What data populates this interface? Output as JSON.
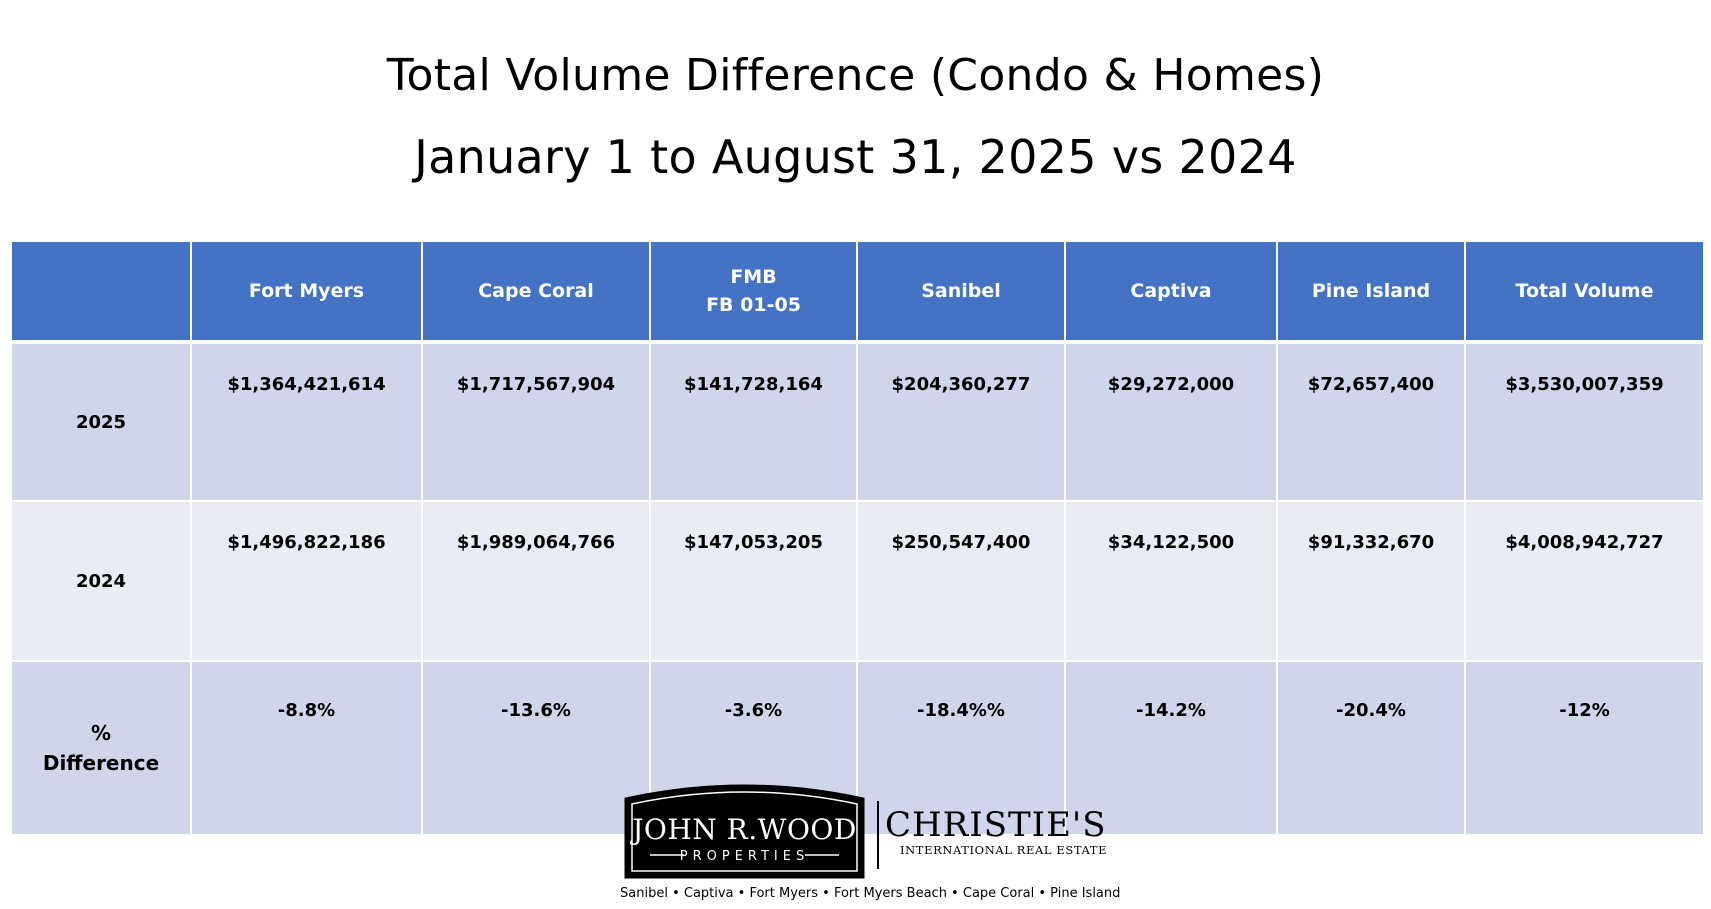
{
  "title": "Total Volume Difference (Condo & Homes)",
  "subtitle": "January 1 to August 31, 2025 vs 2024",
  "table": {
    "columns": [
      {
        "label": ""
      },
      {
        "label": "Fort Myers"
      },
      {
        "label": "Cape Coral"
      },
      {
        "label": "FMB",
        "sublabel": "FB 01-05"
      },
      {
        "label": "Sanibel"
      },
      {
        "label": "Captiva"
      },
      {
        "label": "Pine Island"
      },
      {
        "label": "Total Volume"
      }
    ],
    "rows": [
      {
        "label": "2025",
        "cells": [
          "$1,364,421,614",
          "$1,717,567,904",
          "$141,728,164",
          "$204,360,277",
          "$29,272,000",
          "$72,657,400",
          "$3,530,007,359"
        ]
      },
      {
        "label": "2024",
        "cells": [
          "$1,496,822,186",
          "$1,989,064,766",
          "$147,053,205",
          "$250,547,400",
          "$34,122,500",
          "$91,332,670",
          "$4,008,942,727"
        ]
      },
      {
        "label": "%",
        "label2": "Difference",
        "cells": [
          "-8.8%",
          "-13.6%",
          "-3.6%",
          "-18.4%%",
          "-14.2%",
          "-20.4%",
          "-12%"
        ]
      }
    ]
  },
  "branding": {
    "jrw_name": "JOHN R.WOOD",
    "jrw_sub": "PROPERTIES",
    "christies_name": "CHRISTIE'S",
    "christies_sub": "INTERNATIONAL REAL ESTATE",
    "locations": "Sanibel • Captiva • Fort Myers • Fort Myers Beach • Cape Coral • Pine Island"
  },
  "colors": {
    "header": "#4472c4",
    "band_dark": "#cfd5ea",
    "band_light": "#e9ebf5"
  }
}
